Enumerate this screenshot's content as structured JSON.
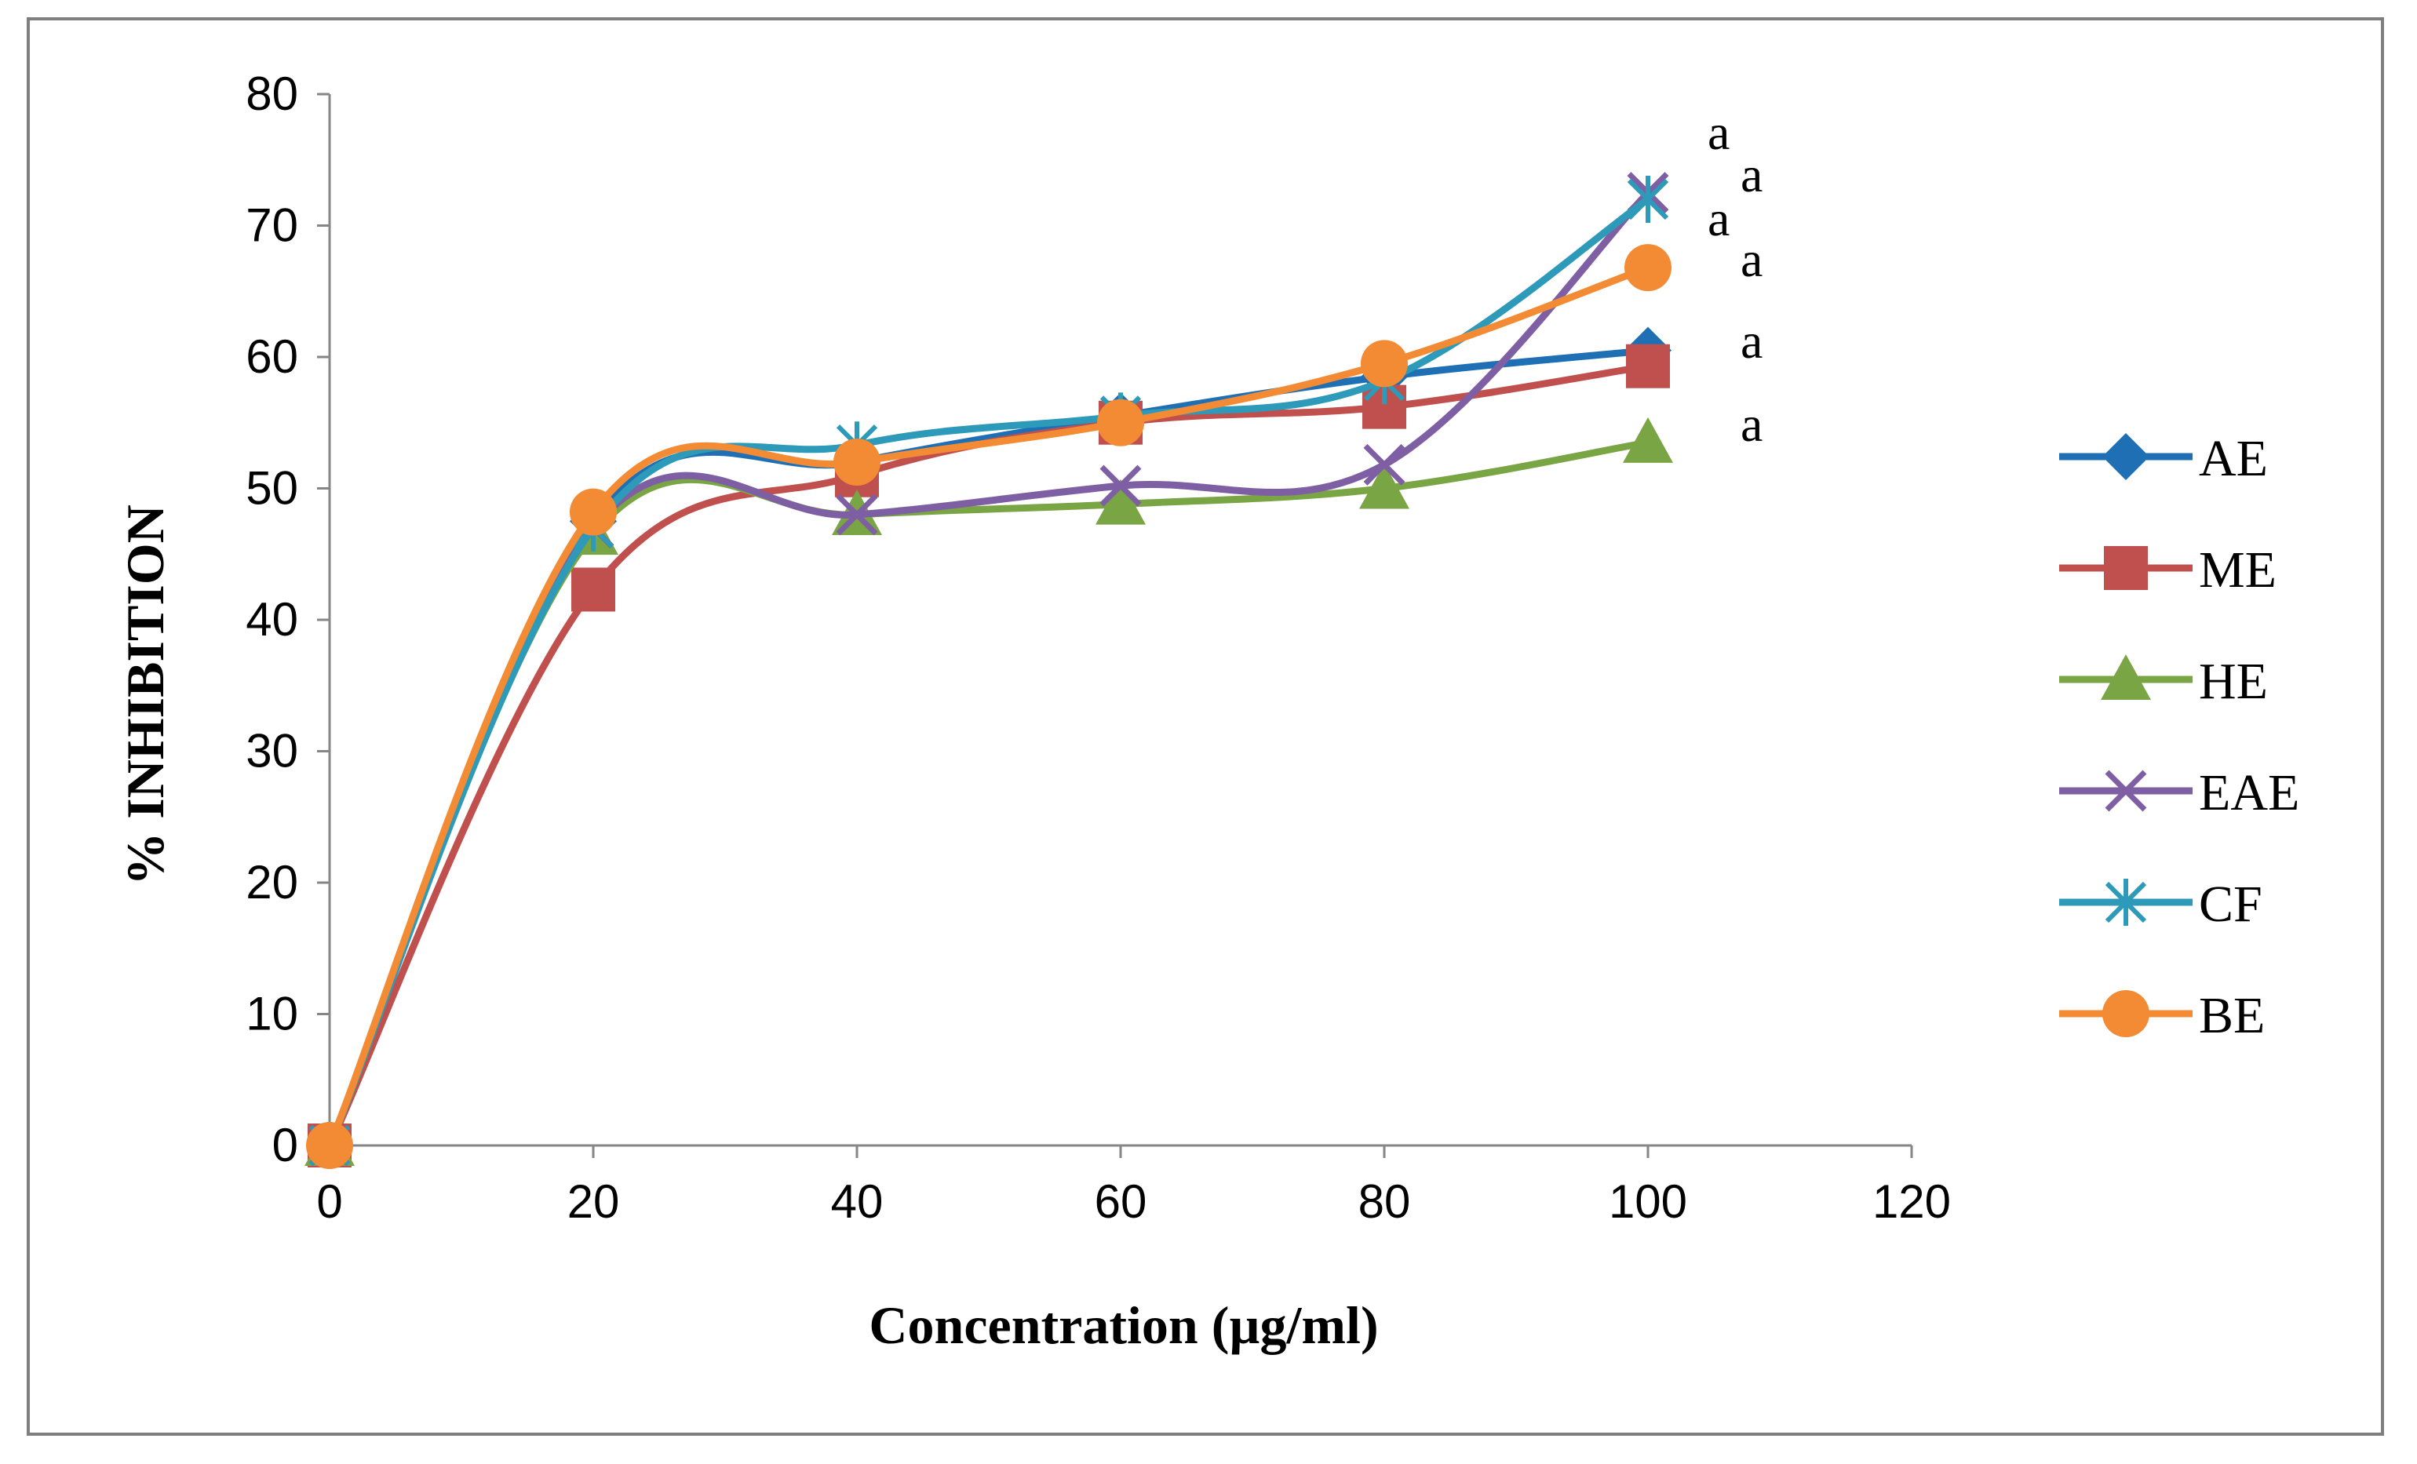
{
  "chart_data": {
    "type": "line",
    "title": "",
    "xlabel": "Concentration (µg/ml)",
    "ylabel": "% INHIBITION",
    "xlim": [
      0,
      120
    ],
    "ylim": [
      0,
      80
    ],
    "xticks": [
      "0",
      "20",
      "40",
      "60",
      "80",
      "100",
      "120"
    ],
    "yticks": [
      "0",
      "10",
      "20",
      "30",
      "40",
      "50",
      "60",
      "70",
      "80"
    ],
    "grid": false,
    "legend_position": "right",
    "x": [
      0,
      20,
      40,
      60,
      80,
      100
    ],
    "series": [
      {
        "name": "AE",
        "color": "#1f6fb5",
        "marker": "diamond",
        "values": [
          0,
          47.5,
          52,
          55.5,
          58.5,
          60.5
        ]
      },
      {
        "name": "ME",
        "color": "#c0504d",
        "marker": "square",
        "values": [
          0,
          42.3,
          51,
          55,
          56.2,
          59.3
        ]
      },
      {
        "name": "HE",
        "color": "#79a544",
        "marker": "triangle",
        "values": [
          0,
          46.5,
          48,
          48.8,
          50,
          53.5
        ]
      },
      {
        "name": "EAE",
        "color": "#7f5fa3",
        "marker": "x",
        "values": [
          0,
          47,
          48,
          50.2,
          51.8,
          72.5
        ]
      },
      {
        "name": "CF",
        "color": "#2c9ab8",
        "marker": "star",
        "values": [
          0,
          47,
          53.3,
          55.5,
          58.2,
          72
        ]
      },
      {
        "name": "BE",
        "color": "#f38b34",
        "marker": "circle",
        "values": [
          0,
          48.2,
          52,
          55,
          59.5,
          66.8
        ]
      }
    ],
    "annotations": [
      "a",
      "a",
      "a",
      "a",
      "a",
      "a"
    ]
  }
}
